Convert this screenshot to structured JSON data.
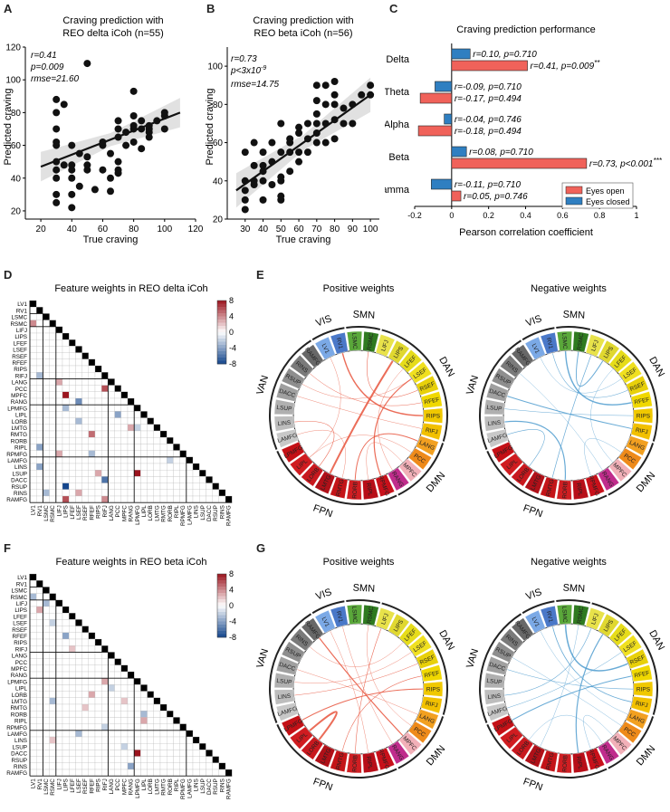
{
  "panels": {
    "a": {
      "letter": "A",
      "title_l1": "Craving prediction with",
      "title_l2": "REO delta iCoh (n=55)",
      "stats": [
        "r=0.41",
        "p=0.009",
        "rmse=21.60"
      ],
      "xlabel": "True craving",
      "ylabel": "Predicted craving"
    },
    "b": {
      "letter": "B",
      "title_l1": "Craving prediction with",
      "title_l2": "REO beta iCoh (n=56)",
      "stats": [
        "r=0.73",
        "p<3x10",
        "-9",
        "rmse=14.75"
      ],
      "xlabel": "True craving",
      "ylabel": "Predicted craving"
    },
    "c": {
      "letter": "C",
      "title": "Craving prediction performance",
      "xlabel": "Pearson correlation coefficient"
    },
    "d": {
      "letter": "D",
      "title": "Feature weights in REO delta iCoh"
    },
    "e": {
      "letter": "E",
      "pos_title": "Positive weights",
      "neg_title": "Negative weights"
    },
    "f": {
      "letter": "F",
      "title": "Feature weights in REO beta iCoh"
    },
    "g": {
      "letter": "G",
      "pos_title": "Positive weights",
      "neg_title": "Negative weights"
    }
  },
  "chart_data": [
    {
      "type": "scatter",
      "title": "Craving prediction with REO delta iCoh (n=55)",
      "xlabel": "True craving",
      "ylabel": "Predicted craving",
      "xlim": [
        10,
        120
      ],
      "ylim": [
        15,
        120
      ],
      "xticks": [
        20,
        40,
        60,
        80,
        100,
        120
      ],
      "yticks": [
        20,
        40,
        60,
        80,
        100,
        120
      ],
      "x": [
        30,
        30,
        30,
        30,
        30,
        30,
        30,
        30,
        30,
        30,
        35,
        35,
        40,
        40,
        40,
        40,
        40,
        40,
        45,
        45,
        50,
        50,
        50,
        50,
        55,
        60,
        60,
        60,
        65,
        65,
        65,
        70,
        70,
        70,
        70,
        70,
        70,
        75,
        75,
        80,
        80,
        80,
        80,
        80,
        85,
        85,
        85,
        90,
        90,
        90,
        90,
        95,
        100,
        100,
        100
      ],
      "y": [
        25,
        40,
        45,
        50,
        60,
        62,
        70,
        80,
        88,
        30,
        48,
        85,
        22,
        30,
        40,
        45,
        48,
        60,
        55,
        35,
        45,
        48,
        110,
        53,
        33,
        45,
        60,
        62,
        32,
        40,
        55,
        43,
        45,
        50,
        65,
        70,
        75,
        60,
        68,
        62,
        70,
        72,
        78,
        93,
        58,
        70,
        75,
        65,
        68,
        70,
        72,
        75,
        70,
        78,
        80
      ],
      "fit": {
        "x0": 20,
        "y0": 47,
        "x1": 110,
        "y1": 80
      }
    },
    {
      "type": "scatter",
      "title": "Craving prediction with REO beta iCoh (n=56)",
      "xlabel": "True craving",
      "ylabel": "Predicted craving",
      "xlim": [
        20,
        105
      ],
      "ylim": [
        20,
        110
      ],
      "xticks": [
        30,
        40,
        50,
        60,
        70,
        80,
        90,
        100
      ],
      "yticks": [
        20,
        40,
        60,
        80,
        100
      ],
      "x": [
        30,
        30,
        30,
        30,
        30,
        35,
        35,
        35,
        35,
        40,
        40,
        40,
        40,
        40,
        45,
        45,
        45,
        50,
        50,
        50,
        50,
        50,
        50,
        55,
        55,
        55,
        55,
        60,
        60,
        60,
        60,
        65,
        65,
        65,
        70,
        70,
        70,
        70,
        70,
        70,
        75,
        75,
        75,
        75,
        80,
        80,
        80,
        80,
        80,
        85,
        85,
        90,
        90,
        95,
        100,
        100
      ],
      "y": [
        25,
        30,
        35,
        40,
        55,
        38,
        40,
        48,
        60,
        30,
        40,
        45,
        48,
        55,
        38,
        50,
        60,
        30,
        32,
        40,
        42,
        55,
        70,
        45,
        55,
        60,
        62,
        50,
        55,
        65,
        68,
        55,
        62,
        70,
        60,
        65,
        70,
        75,
        82,
        90,
        60,
        70,
        80,
        90,
        62,
        72,
        80,
        85,
        92,
        70,
        78,
        70,
        80,
        85,
        85,
        90
      ],
      "fit": {
        "x0": 25,
        "y0": 35,
        "x1": 100,
        "y1": 85
      }
    },
    {
      "type": "bar",
      "orientation": "horizontal",
      "title": "Craving prediction performance",
      "xlabel": "Pearson correlation coefficient",
      "xlim": [
        -0.2,
        1
      ],
      "xticks": [
        "-0.2",
        "0",
        "0.2",
        "0.4",
        "0.6",
        "0.8",
        "1"
      ],
      "categories": [
        "Delta",
        "Theta",
        "Alpha",
        "Beta",
        "Gamma"
      ],
      "series": [
        {
          "name": "Eyes closed",
          "color": "#2f7fc1",
          "values": [
            0.1,
            -0.09,
            -0.04,
            0.08,
            -0.11
          ],
          "labels": [
            "r=0.10, p=0.710",
            "r=-0.09, p=0.710",
            "r=-0.04, p=0.746",
            "r=0.08, p=0.710",
            "r=-0.11, p=0.710"
          ]
        },
        {
          "name": "Eyes open",
          "color": "#f0625a",
          "values": [
            0.41,
            -0.17,
            -0.18,
            0.73,
            0.05
          ],
          "labels": [
            "r=0.41, p=0.009",
            "r=-0.17, p=0.494",
            "r=-0.18, p=0.494",
            "r=0.73, p<0.001",
            "r=0.05, p=0.746"
          ],
          "stars": [
            "**",
            "",
            "",
            "***",
            ""
          ]
        }
      ]
    },
    {
      "type": "heatmap",
      "title": "Feature weights in REO delta iCoh",
      "colorbar": {
        "ticks": [
          "8",
          "4",
          "0",
          "-4",
          "-8"
        ],
        "min": -8,
        "max": 8
      },
      "cells": [
        [
          3,
          0,
          4
        ],
        [
          11,
          1,
          -3
        ],
        [
          12,
          4,
          3
        ],
        [
          15,
          7,
          -5
        ],
        [
          16,
          5,
          -3
        ],
        [
          13,
          11,
          6
        ],
        [
          17,
          13,
          -4
        ],
        [
          17,
          18,
          -6
        ],
        [
          19,
          15,
          3
        ],
        [
          19,
          16,
          -2
        ],
        [
          20,
          9,
          5
        ],
        [
          23,
          9,
          -3
        ],
        [
          23,
          4,
          3
        ],
        [
          24,
          21,
          -2
        ],
        [
          25,
          1,
          -4
        ],
        [
          26,
          16,
          8
        ],
        [
          26,
          10,
          3
        ],
        [
          27,
          11,
          -6
        ],
        [
          28,
          5,
          -8
        ],
        [
          29,
          7,
          3
        ],
        [
          29,
          2,
          -3
        ],
        [
          30,
          5,
          6
        ],
        [
          30,
          11,
          4
        ],
        [
          31,
          4,
          -3
        ],
        [
          14,
          5,
          8
        ],
        [
          22,
          1,
          -4
        ],
        [
          18,
          7,
          -3
        ]
      ]
    },
    {
      "type": "heatmap",
      "title": "Feature weights in REO beta iCoh",
      "colorbar": {
        "ticks": [
          "8",
          "4",
          "0",
          "-4",
          "-8"
        ],
        "min": -8,
        "max": 8
      },
      "cells": [
        [
          3,
          0,
          -3
        ],
        [
          4,
          2,
          -3
        ],
        [
          5,
          1,
          3
        ],
        [
          7,
          3,
          -2
        ],
        [
          9,
          5,
          -4
        ],
        [
          11,
          6,
          2
        ],
        [
          14,
          16,
          -4
        ],
        [
          15,
          17,
          7
        ],
        [
          16,
          11,
          3
        ],
        [
          17,
          12,
          -2
        ],
        [
          18,
          9,
          3
        ],
        [
          19,
          14,
          2
        ],
        [
          19,
          3,
          -3
        ],
        [
          20,
          8,
          2
        ],
        [
          22,
          17,
          3
        ],
        [
          24,
          7,
          -3
        ],
        [
          26,
          14,
          -2
        ],
        [
          27,
          16,
          9
        ],
        [
          29,
          15,
          -4
        ],
        [
          31,
          6,
          -6
        ],
        [
          21,
          17,
          -3
        ],
        [
          25,
          3,
          2
        ],
        [
          23,
          11,
          -2
        ]
      ]
    }
  ],
  "regions": [
    {
      "name": "LV1",
      "net": "VIS"
    },
    {
      "name": "RV1",
      "net": "VIS"
    },
    {
      "name": "LSMC",
      "net": "SMN"
    },
    {
      "name": "RSMC",
      "net": "SMN"
    },
    {
      "name": "LIFJ",
      "net": "DAN"
    },
    {
      "name": "LIPS",
      "net": "DAN"
    },
    {
      "name": "LFEF",
      "net": "DAN"
    },
    {
      "name": "LSEF",
      "net": "DAN"
    },
    {
      "name": "RSEF",
      "net": "DAN"
    },
    {
      "name": "RFEF",
      "net": "DAN"
    },
    {
      "name": "RIPS",
      "net": "DAN"
    },
    {
      "name": "RIFJ",
      "net": "DAN"
    },
    {
      "name": "LANG",
      "net": "DMN"
    },
    {
      "name": "PCC",
      "net": "DMN"
    },
    {
      "name": "MPFC",
      "net": "DMN"
    },
    {
      "name": "RANG",
      "net": "DMN"
    },
    {
      "name": "LPMFG",
      "net": "FPN"
    },
    {
      "name": "LIPL",
      "net": "FPN"
    },
    {
      "name": "LORB",
      "net": "FPN"
    },
    {
      "name": "LMTG",
      "net": "FPN"
    },
    {
      "name": "RMTG",
      "net": "FPN"
    },
    {
      "name": "RORB",
      "net": "FPN"
    },
    {
      "name": "RIPL",
      "net": "FPN"
    },
    {
      "name": "RPMFG",
      "net": "FPN"
    },
    {
      "name": "LAMFG",
      "net": "VAN"
    },
    {
      "name": "LINS",
      "net": "VAN"
    },
    {
      "name": "LSUP",
      "net": "VAN"
    },
    {
      "name": "DACC",
      "net": "VAN"
    },
    {
      "name": "RSUP",
      "net": "VAN"
    },
    {
      "name": "RINS",
      "net": "VAN"
    },
    {
      "name": "RAMFG",
      "net": "VAN"
    }
  ],
  "networks": [
    {
      "name": "VIS",
      "color": "#5b8fd6"
    },
    {
      "name": "SMN",
      "color": "#3f8f2a"
    },
    {
      "name": "DAN",
      "color": "#e0d200"
    },
    {
      "name": "DMN",
      "color": "#e07020"
    },
    {
      "name": "FPN",
      "color": "#c8151b"
    },
    {
      "name": "VAN",
      "color": "#8a8a8a"
    }
  ],
  "chord_order": [
    "LV1",
    "RV1",
    "LSMC",
    "RSMC",
    "LIFJ",
    "LIPS",
    "LFEF",
    "LSEF",
    "RSEF",
    "RFEF",
    "RIPS",
    "RIFJ",
    "LANG",
    "PCC",
    "MPFC",
    "RANG",
    "RPMFG",
    "RIPL",
    "RORB",
    "RMTG",
    "LMTG",
    "LORB",
    "LIPL",
    "LPMFG",
    "LAMFG",
    "LINS",
    "LSUP",
    "DACC",
    "RSUP",
    "RINS",
    "RAMFG"
  ],
  "chord_colors": {
    "LV1": "#7ba9e6",
    "RV1": "#4a78c8",
    "LSMC": "#5aa83a",
    "RSMC": "#2f7a20",
    "LIFJ": "#e8e24a",
    "LIPS": "#e0d830",
    "LFEF": "#e6dc1a",
    "LSEF": "#f0e020",
    "RSEF": "#e8d00a",
    "RFEF": "#f0d800",
    "RIPS": "#f0c800",
    "RIFJ": "#f2c000",
    "LANG": "#f2a020",
    "PCC": "#ee8a1a",
    "MPFC": "#f2b0b8",
    "RANG": "#c02c8c",
    "RPMFG": "#c8101a",
    "RIPL": "#b80e18",
    "RORB": "#d01e22",
    "RMTG": "#c41418",
    "LMTG": "#b01018",
    "LORB": "#c8181e",
    "LIPL": "#d01c20",
    "LPMFG": "#c41016",
    "LAMFG": "#c8c8c8",
    "LINS": "#bdbdbd",
    "LSUP": "#b0b0b0",
    "DACC": "#a0a0a0",
    "RSUP": "#8e8e8e",
    "RINS": "#7a7a7a",
    "RAMFG": "#686868"
  },
  "chord_links": {
    "e_pos": [
      [
        "LIPS",
        "LMTG",
        2
      ],
      [
        "RV1",
        "RIPS",
        1.4
      ],
      [
        "LSEF",
        "RPMFG",
        1.2
      ],
      [
        "RORB",
        "LANG",
        1
      ],
      [
        "RSMC",
        "RSEF",
        0.6
      ],
      [
        "LINS",
        "LORB",
        0.6
      ],
      [
        "RINS",
        "RFEF",
        0.5
      ],
      [
        "LV1",
        "LIPL",
        0.4
      ],
      [
        "DACC",
        "RIFJ",
        0.4
      ],
      [
        "RSUP",
        "LSEF",
        0.4
      ],
      [
        "LAMFG",
        "RMTG",
        0.4
      ],
      [
        "PCC",
        "LIPL",
        0.4
      ],
      [
        "MPFC",
        "RIPL",
        0.4
      ],
      [
        "LFEF",
        "RANG",
        0.4
      ]
    ],
    "e_neg": [
      [
        "LSMC",
        "RFEF",
        1.4
      ],
      [
        "LINS",
        "RORB",
        1.2
      ],
      [
        "RSMC",
        "LIPS",
        1
      ],
      [
        "DACC",
        "RIFJ",
        1
      ],
      [
        "LIFJ",
        "RMTG",
        0.7
      ],
      [
        "LAMFG",
        "LORB",
        0.6
      ],
      [
        "RV1",
        "RSEF",
        0.6
      ],
      [
        "LSUP",
        "RIPS",
        0.5
      ],
      [
        "RINS",
        "RANG",
        0.4
      ],
      [
        "LV1",
        "LSEF",
        0.4
      ],
      [
        "PCC",
        "RPMFG",
        0.4
      ],
      [
        "MPFC",
        "LFEF",
        0.4
      ]
    ],
    "g_pos": [
      [
        "LIPL",
        "LORB",
        2
      ],
      [
        "MPFC",
        "RAMFG",
        1.2
      ],
      [
        "RIPS",
        "LPMFG",
        1
      ],
      [
        "RFEF",
        "RMTG",
        0.6
      ],
      [
        "LIFJ",
        "RORB",
        0.6
      ],
      [
        "RSEF",
        "LINS",
        0.5
      ],
      [
        "DACC",
        "LANG",
        0.4
      ],
      [
        "LV1",
        "RIPL",
        0.4
      ],
      [
        "RSMC",
        "PCC",
        0.4
      ],
      [
        "LSEF",
        "LSUP",
        0.4
      ],
      [
        "RINS",
        "LFEF",
        0.4
      ],
      [
        "RV1",
        "RANG",
        0.4
      ]
    ],
    "g_neg": [
      [
        "LSMC",
        "RSEF",
        1.5
      ],
      [
        "RIPL",
        "LIPS",
        1.2
      ],
      [
        "LPMFG",
        "RFEF",
        1
      ],
      [
        "RV1",
        "RIFJ",
        0.8
      ],
      [
        "LINS",
        "LIFJ",
        0.6
      ],
      [
        "DACC",
        "RIPS",
        0.6
      ],
      [
        "LAMFG",
        "LSEF",
        0.5
      ],
      [
        "RSMC",
        "LMTG",
        0.4
      ],
      [
        "RANG",
        "LORB",
        0.4
      ],
      [
        "RSUP",
        "PCC",
        0.4
      ],
      [
        "LV1",
        "LANG",
        0.4
      ],
      [
        "MPFC",
        "RPMFG",
        0.4
      ]
    ]
  },
  "network_labels": {
    "vis": "VIS",
    "smn": "SMN",
    "dan": "DAN",
    "dmn": "DMN",
    "fpn": "FPN",
    "van": "VAN"
  }
}
